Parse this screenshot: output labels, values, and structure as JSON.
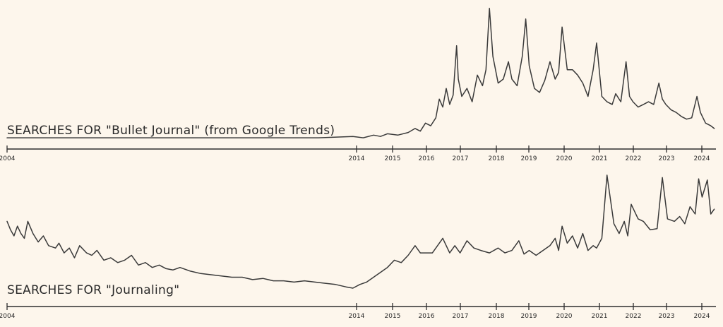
{
  "chart_data": [
    {
      "type": "line",
      "title": "SEARCHES FOR \"Bullet Journal\" (from Google Trends)",
      "xlabel": "",
      "ylabel": "",
      "x_ticks": [
        "2004",
        "2014",
        "2015",
        "2016",
        "2017",
        "2018",
        "2019",
        "2020",
        "2021",
        "2022",
        "2023",
        "2024"
      ],
      "xlim": [
        2004.0,
        2024.5
      ],
      "ylim": [
        0,
        100
      ],
      "grid": false,
      "series": [
        {
          "x": [
            2004.0,
            2013.0,
            2014.0,
            2014.3,
            2014.6,
            2014.8,
            2015.0,
            2015.3,
            2015.6,
            2015.8,
            2015.95,
            2016.1,
            2016.25,
            2016.4,
            2016.5,
            2016.6,
            2016.7,
            2016.8,
            2016.9,
            2017.0,
            2017.05,
            2017.15,
            2017.3,
            2017.45,
            2017.6,
            2017.75,
            2017.85,
            2017.95,
            2018.05,
            2018.2,
            2018.35,
            2018.5,
            2018.6,
            2018.75,
            2018.9,
            2019.0,
            2019.1,
            2019.25,
            2019.4,
            2019.55,
            2019.7,
            2019.85,
            2019.95,
            2020.05,
            2020.2,
            2020.35,
            2020.5,
            2020.65,
            2020.8,
            2020.95,
            2021.05,
            2021.2,
            2021.35,
            2021.5,
            2021.6,
            2021.75,
            2021.9,
            2022.0,
            2022.1,
            2022.25,
            2022.4,
            2022.55,
            2022.7,
            2022.85,
            2022.95,
            2023.05,
            2023.2,
            2023.35,
            2023.5,
            2023.65,
            2023.8,
            2023.95,
            2024.05,
            2024.2,
            2024.35,
            2024.45
          ],
          "y": [
            1,
            1,
            2,
            1,
            3,
            2,
            4,
            3,
            5,
            8,
            6,
            12,
            10,
            16,
            30,
            24,
            38,
            26,
            33,
            70,
            45,
            32,
            38,
            28,
            48,
            40,
            52,
            98,
            62,
            42,
            45,
            58,
            45,
            40,
            62,
            90,
            55,
            38,
            35,
            44,
            58,
            45,
            50,
            84,
            52,
            52,
            48,
            42,
            32,
            52,
            72,
            32,
            28,
            26,
            34,
            28,
            58,
            32,
            28,
            24,
            26,
            28,
            26,
            42,
            30,
            26,
            22,
            20,
            17,
            15,
            16,
            32,
            20,
            12,
            10,
            8
          ]
        }
      ]
    },
    {
      "type": "line",
      "title": "SEARCHES FOR \"Journaling\"",
      "xlabel": "",
      "ylabel": "",
      "x_ticks": [
        "2004",
        "2014",
        "2015",
        "2016",
        "2017",
        "2018",
        "2019",
        "2020",
        "2021",
        "2022",
        "2023",
        "2024"
      ],
      "xlim": [
        2004.0,
        2024.5
      ],
      "ylim": [
        0,
        100
      ],
      "grid": false,
      "series": [
        {
          "x": [
            2004.0,
            2004.1,
            2004.2,
            2004.3,
            2004.4,
            2004.5,
            2004.6,
            2004.75,
            2004.9,
            2005.05,
            2005.2,
            2005.4,
            2005.5,
            2005.65,
            2005.8,
            2005.95,
            2006.1,
            2006.3,
            2006.45,
            2006.6,
            2006.8,
            2007.0,
            2007.2,
            2007.4,
            2007.6,
            2007.8,
            2008.0,
            2008.2,
            2008.4,
            2008.6,
            2008.8,
            2009.0,
            2009.3,
            2009.6,
            2009.9,
            2010.2,
            2010.5,
            2010.8,
            2011.1,
            2011.4,
            2011.7,
            2012.0,
            2012.3,
            2012.6,
            2012.9,
            2013.2,
            2013.5,
            2013.8,
            2014.0,
            2014.2,
            2014.4,
            2014.6,
            2014.8,
            2015.0,
            2015.2,
            2015.4,
            2015.6,
            2015.8,
            2015.95,
            2016.1,
            2016.3,
            2016.6,
            2016.8,
            2016.95,
            2017.1,
            2017.3,
            2017.5,
            2017.7,
            2017.95,
            2018.2,
            2018.4,
            2018.6,
            2018.8,
            2018.95,
            2019.1,
            2019.3,
            2019.5,
            2019.7,
            2019.85,
            2019.95,
            2020.05,
            2020.2,
            2020.35,
            2020.5,
            2020.65,
            2020.8,
            2020.95,
            2021.05,
            2021.2,
            2021.35,
            2021.55,
            2021.7,
            2021.85,
            2021.95,
            2022.05,
            2022.25,
            2022.4,
            2022.6,
            2022.8,
            2022.95,
            2023.1,
            2023.3,
            2023.45,
            2023.6,
            2023.75,
            2023.9,
            2024.0,
            2024.1,
            2024.25,
            2024.35,
            2024.45
          ],
          "y": [
            62,
            55,
            50,
            58,
            52,
            48,
            62,
            52,
            45,
            50,
            42,
            40,
            44,
            36,
            40,
            32,
            42,
            36,
            34,
            38,
            30,
            32,
            28,
            30,
            34,
            26,
            28,
            24,
            26,
            23,
            22,
            24,
            21,
            19,
            18,
            17,
            16,
            16,
            14,
            15,
            13,
            13,
            12,
            13,
            12,
            11,
            10,
            8,
            7,
            10,
            12,
            16,
            20,
            24,
            30,
            28,
            34,
            42,
            36,
            36,
            36,
            48,
            36,
            42,
            36,
            46,
            40,
            38,
            36,
            40,
            36,
            38,
            46,
            35,
            38,
            34,
            38,
            42,
            48,
            38,
            58,
            44,
            50,
            40,
            52,
            38,
            42,
            40,
            48,
            100,
            60,
            52,
            62,
            50,
            76,
            64,
            62,
            55,
            56,
            98,
            64,
            62,
            66,
            60,
            74,
            68,
            97,
            82,
            96,
            68,
            72
          ]
        }
      ]
    }
  ]
}
